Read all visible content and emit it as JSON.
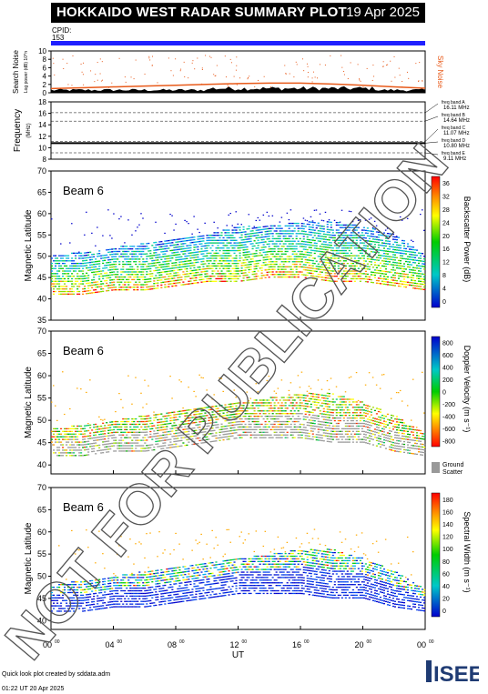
{
  "header": {
    "title": "HOKKAIDO WEST RADAR SUMMARY PLOT",
    "date": "19 Apr 2025"
  },
  "cpid": {
    "label": "CPID:",
    "value": "153"
  },
  "noise_panel": {
    "ylabel": "Search Noise",
    "ylabel_unit": "Log power (dB) 10^n",
    "yticks": [
      "10",
      "8",
      "6",
      "4",
      "2",
      "0"
    ],
    "right_label": "Sky Noise"
  },
  "freq_panel": {
    "ylabel": "Frequency",
    "ylabel_unit": "(MHz)",
    "yticks": [
      "18",
      "16",
      "14",
      "12",
      "10",
      "8"
    ],
    "bands": [
      {
        "label": "freq band A",
        "value": "16.11 MHz"
      },
      {
        "label": "freq band B",
        "value": "14.64 MHz"
      },
      {
        "label": "freq band C",
        "value": "11.07 MHz"
      },
      {
        "label": "freq band D",
        "value": "10.80 MHz"
      },
      {
        "label": "freq band E",
        "value": "9.11 MHz"
      }
    ]
  },
  "panels": [
    {
      "beam": "Beam  6",
      "ylabel": "Magnetic Latitude",
      "yticks": [
        "70",
        "65",
        "60",
        "55",
        "50",
        "45",
        "40",
        "35"
      ],
      "cbar_label": "Backscatter Power (dB)",
      "cbar_ticks": [
        "36",
        "32",
        "28",
        "24",
        "20",
        "16",
        "12",
        "8",
        "4",
        "0"
      ]
    },
    {
      "beam": "Beam  6",
      "ylabel": "Magnetic Latitude",
      "yticks": [
        "70",
        "65",
        "60",
        "55",
        "50",
        "45",
        "40"
      ],
      "cbar_label": "Doppler Velocity (m s⁻¹)",
      "cbar_ticks": [
        "800",
        "600",
        "400",
        "200",
        "0",
        "-200",
        "-400",
        "-600",
        "-800"
      ],
      "ground_label": "Ground",
      "ground_label2": "Scatter"
    },
    {
      "beam": "Beam  6",
      "ylabel": "Magnetic Latitude",
      "yticks": [
        "70",
        "65",
        "60",
        "55",
        "50",
        "45",
        "40"
      ],
      "cbar_label": "Spectral Width (m s⁻¹)",
      "cbar_ticks": [
        "180",
        "160",
        "140",
        "120",
        "100",
        "80",
        "60",
        "40",
        "20",
        "0"
      ]
    }
  ],
  "xaxis": {
    "ticks": [
      "00",
      "04",
      "08",
      "12",
      "16",
      "20",
      "00"
    ],
    "tick_sup": "00",
    "label": "UT"
  },
  "watermark": "NOT FOR PUBLICATION",
  "footer": {
    "line1": "Quick look plot created by sddata.adm",
    "line2": "01:22 UT 20 Apr 2025"
  },
  "logo": "ISEE",
  "colors": {
    "cpid_bar": "#2020ff",
    "noise": "#e85a1a",
    "grid": "#000000"
  },
  "chart_data": [
    {
      "type": "line",
      "title": "Search Noise",
      "ylim": [
        0,
        10
      ],
      "x_range_ut": [
        0,
        24
      ],
      "series": [
        {
          "name": "Sky Noise",
          "x": [
            0,
            2,
            4,
            6,
            8,
            10,
            12,
            14,
            16,
            18,
            20,
            22,
            24
          ],
          "values": [
            1.0,
            1.2,
            1.4,
            1.6,
            1.8,
            2.0,
            2.2,
            2.3,
            2.3,
            2.1,
            1.8,
            1.4,
            1.1
          ]
        }
      ]
    },
    {
      "type": "line",
      "title": "Frequency",
      "ylim": [
        8,
        18
      ],
      "x_range_ut": [
        0,
        24
      ],
      "series": [
        {
          "x": [
            0,
            6,
            12,
            18,
            24
          ],
          "values": [
            10.8,
            10.8,
            10.8,
            10.8,
            10.8
          ]
        }
      ]
    },
    {
      "type": "heatmap",
      "title": "Backscatter Power",
      "ylim": [
        35,
        70
      ],
      "x_range_ut": [
        0,
        24
      ],
      "band_ut": [
        0,
        2,
        4,
        6,
        8,
        10,
        12,
        14,
        16,
        18,
        20,
        22,
        24
      ],
      "band_lat_low": [
        41,
        41,
        42,
        42,
        43,
        44,
        44,
        45,
        45,
        44,
        44,
        43,
        42
      ],
      "band_lat_high": [
        50,
        51,
        52,
        53,
        54,
        55,
        57,
        57,
        58,
        58,
        57,
        55,
        50
      ]
    },
    {
      "type": "heatmap",
      "title": "Doppler Velocity",
      "ylim": [
        38,
        70
      ],
      "x_range_ut": [
        0,
        24
      ],
      "band_ut": [
        0,
        2,
        4,
        6,
        8,
        10,
        12,
        14,
        16,
        18,
        20,
        22,
        24
      ],
      "band_lat_low": [
        42,
        42,
        43,
        43,
        44,
        45,
        46,
        46,
        46,
        45,
        45,
        43,
        42
      ],
      "band_lat_high": [
        48,
        49,
        50,
        51,
        52,
        53,
        54,
        55,
        56,
        56,
        54,
        51,
        47
      ]
    },
    {
      "type": "heatmap",
      "title": "Spectral Width",
      "ylim": [
        38,
        70
      ],
      "x_range_ut": [
        0,
        24
      ],
      "band_ut": [
        0,
        2,
        4,
        6,
        8,
        10,
        12,
        14,
        16,
        18,
        20,
        22,
        24
      ],
      "band_lat_low": [
        42,
        42,
        43,
        43,
        44,
        45,
        46,
        46,
        46,
        45,
        45,
        43,
        42
      ],
      "band_lat_high": [
        48,
        49,
        50,
        51,
        52,
        53,
        54,
        55,
        56,
        56,
        54,
        51,
        47
      ]
    }
  ]
}
